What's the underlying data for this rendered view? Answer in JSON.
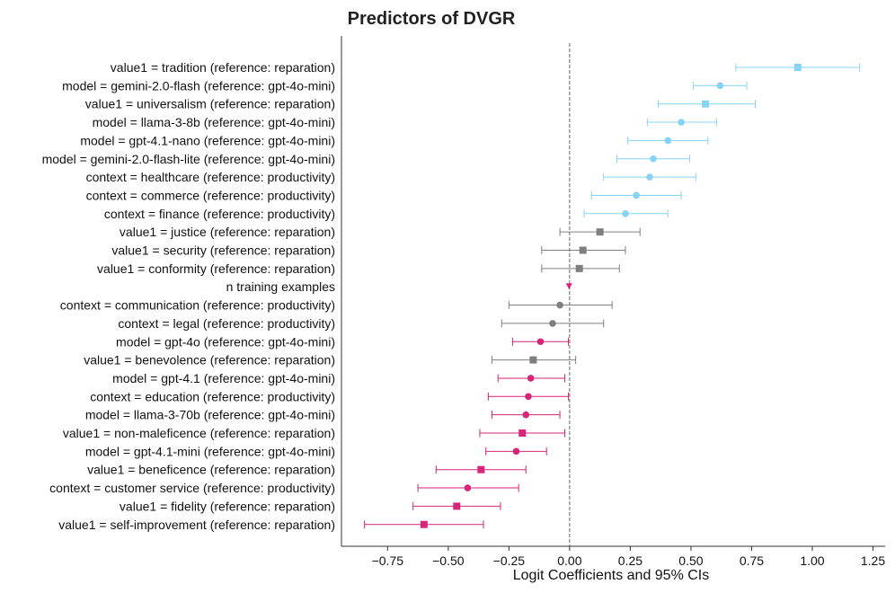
{
  "chart_data": {
    "type": "forest",
    "title": "Predictors of DVGR",
    "xlabel": "Logit Coefficients and 95% CIs",
    "ylabel": "",
    "xlim": [
      -0.94,
      1.3
    ],
    "xticks": [
      -0.75,
      -0.5,
      -0.25,
      0.0,
      0.25,
      0.5,
      0.75,
      1.0,
      1.25
    ],
    "xtick_labels": [
      "−0.75",
      "−0.50",
      "−0.25",
      "0.00",
      "0.25",
      "0.50",
      "0.75",
      "1.00",
      "1.25"
    ],
    "reference_line": 0,
    "colors": {
      "positive": "#87d3f5",
      "neutral": "#7f7f7f",
      "negative": "#d6257a"
    },
    "rows": [
      {
        "label": "value1 = tradition (reference: reparation)",
        "estimate": 0.94,
        "lower": 0.685,
        "upper": 1.195,
        "marker": "square",
        "group": "positive"
      },
      {
        "label": "model = gemini-2.0-flash (reference: gpt-4o-mini)",
        "estimate": 0.62,
        "lower": 0.51,
        "upper": 0.73,
        "marker": "circle",
        "group": "positive"
      },
      {
        "label": "value1 = universalism (reference: reparation)",
        "estimate": 0.56,
        "lower": 0.365,
        "upper": 0.765,
        "marker": "square",
        "group": "positive"
      },
      {
        "label": "model = llama-3-8b (reference: gpt-4o-mini)",
        "estimate": 0.46,
        "lower": 0.32,
        "upper": 0.605,
        "marker": "circle",
        "group": "positive"
      },
      {
        "label": "model = gpt-4.1-nano (reference: gpt-4o-mini)",
        "estimate": 0.405,
        "lower": 0.24,
        "upper": 0.57,
        "marker": "circle",
        "group": "positive"
      },
      {
        "label": "model = gemini-2.0-flash-lite (reference: gpt-4o-mini)",
        "estimate": 0.345,
        "lower": 0.195,
        "upper": 0.495,
        "marker": "circle",
        "group": "positive"
      },
      {
        "label": "context = healthcare (reference: productivity)",
        "estimate": 0.33,
        "lower": 0.14,
        "upper": 0.52,
        "marker": "circle",
        "group": "positive"
      },
      {
        "label": "context = commerce (reference: productivity)",
        "estimate": 0.275,
        "lower": 0.09,
        "upper": 0.46,
        "marker": "circle",
        "group": "positive"
      },
      {
        "label": "context = finance (reference: productivity)",
        "estimate": 0.23,
        "lower": 0.06,
        "upper": 0.405,
        "marker": "circle",
        "group": "positive"
      },
      {
        "label": "value1 = justice (reference: reparation)",
        "estimate": 0.125,
        "lower": -0.04,
        "upper": 0.29,
        "marker": "square",
        "group": "neutral"
      },
      {
        "label": "value1 = security (reference: reparation)",
        "estimate": 0.055,
        "lower": -0.115,
        "upper": 0.23,
        "marker": "square",
        "group": "neutral"
      },
      {
        "label": "value1 = conformity (reference: reparation)",
        "estimate": 0.04,
        "lower": -0.115,
        "upper": 0.205,
        "marker": "square",
        "group": "neutral"
      },
      {
        "label": "n training examples",
        "estimate": -0.002,
        "lower": -0.004,
        "upper": 0.0,
        "marker": "triangle",
        "group": "negative"
      },
      {
        "label": "context = communication (reference: productivity)",
        "estimate": -0.04,
        "lower": -0.25,
        "upper": 0.175,
        "marker": "circle",
        "group": "neutral"
      },
      {
        "label": "context = legal (reference: productivity)",
        "estimate": -0.07,
        "lower": -0.28,
        "upper": 0.14,
        "marker": "circle",
        "group": "neutral"
      },
      {
        "label": "model = gpt-4o (reference: gpt-4o-mini)",
        "estimate": -0.12,
        "lower": -0.235,
        "upper": -0.005,
        "marker": "circle",
        "group": "negative"
      },
      {
        "label": "value1 = benevolence (reference: reparation)",
        "estimate": -0.15,
        "lower": -0.32,
        "upper": 0.025,
        "marker": "square",
        "group": "neutral"
      },
      {
        "label": "model = gpt-4.1 (reference: gpt-4o-mini)",
        "estimate": -0.16,
        "lower": -0.295,
        "upper": -0.02,
        "marker": "circle",
        "group": "negative"
      },
      {
        "label": "context = education (reference: productivity)",
        "estimate": -0.17,
        "lower": -0.335,
        "upper": -0.005,
        "marker": "circle",
        "group": "negative"
      },
      {
        "label": "model = llama-3-70b (reference: gpt-4o-mini)",
        "estimate": -0.18,
        "lower": -0.32,
        "upper": -0.04,
        "marker": "circle",
        "group": "negative"
      },
      {
        "label": "value1 = non-maleficence (reference: reparation)",
        "estimate": -0.195,
        "lower": -0.37,
        "upper": -0.02,
        "marker": "square",
        "group": "negative"
      },
      {
        "label": "model = gpt-4.1-mini (reference: gpt-4o-mini)",
        "estimate": -0.22,
        "lower": -0.345,
        "upper": -0.095,
        "marker": "circle",
        "group": "negative"
      },
      {
        "label": "value1 = beneficence (reference: reparation)",
        "estimate": -0.365,
        "lower": -0.55,
        "upper": -0.18,
        "marker": "square",
        "group": "negative"
      },
      {
        "label": "context = customer service (reference: productivity)",
        "estimate": -0.42,
        "lower": -0.625,
        "upper": -0.21,
        "marker": "circle",
        "group": "negative"
      },
      {
        "label": "value1 = fidelity (reference: reparation)",
        "estimate": -0.465,
        "lower": -0.645,
        "upper": -0.285,
        "marker": "square",
        "group": "negative"
      },
      {
        "label": "value1 = self-improvement (reference: reparation)",
        "estimate": -0.6,
        "lower": -0.845,
        "upper": -0.355,
        "marker": "square",
        "group": "negative"
      }
    ]
  }
}
